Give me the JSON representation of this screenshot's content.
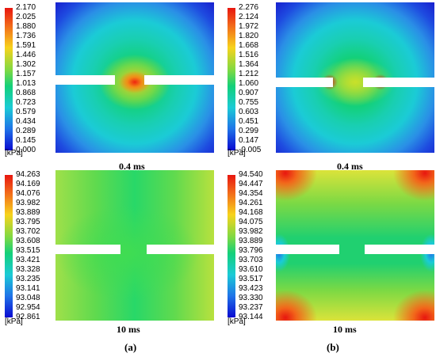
{
  "chart_data": [
    {
      "type": "heatmap",
      "panel": "a-top",
      "colorbar_ticks": [
        "2.170",
        "2.025",
        "1.880",
        "1.736",
        "1.591",
        "1.446",
        "1.302",
        "1.157",
        "1.013",
        "0.868",
        "0.723",
        "0.579",
        "0.434",
        "0.289",
        "0.145",
        "0.000"
      ],
      "unit": "[kPa]",
      "time_label": "0.4 ms"
    },
    {
      "type": "heatmap",
      "panel": "b-top",
      "colorbar_ticks": [
        "2.276",
        "2.124",
        "1.972",
        "1.820",
        "1.668",
        "1.516",
        "1.364",
        "1.212",
        "1.060",
        "0.907",
        "0.755",
        "0.603",
        "0.451",
        "0.299",
        "0.147",
        "-0.005"
      ],
      "unit": "[kPa]",
      "time_label": "0.4 ms"
    },
    {
      "type": "heatmap",
      "panel": "a-bottom",
      "colorbar_ticks": [
        "94.263",
        "94.169",
        "94.076",
        "93.982",
        "93.889",
        "93.795",
        "93.702",
        "93.608",
        "93.515",
        "93.421",
        "93.328",
        "93.235",
        "93.141",
        "93.048",
        "92.954",
        "92.861"
      ],
      "unit": "[kPa]",
      "time_label": "10 ms"
    },
    {
      "type": "heatmap",
      "panel": "b-bottom",
      "colorbar_ticks": [
        "94.540",
        "94.447",
        "94.354",
        "94.261",
        "94.168",
        "94.075",
        "93.982",
        "93.889",
        "93.796",
        "93.703",
        "93.610",
        "93.517",
        "93.423",
        "93.330",
        "93.237",
        "93.144"
      ],
      "unit": "[kPa]",
      "time_label": "10 ms"
    }
  ],
  "subfigure_labels": {
    "a": "(a)",
    "b": "(b)"
  },
  "colors": {
    "scale_top": "#e8160f",
    "scale_upper": "#f7d31c",
    "scale_mid": "#13d07a",
    "scale_lower": "#1bcbd6",
    "scale_bottom": "#0a0ad1"
  }
}
